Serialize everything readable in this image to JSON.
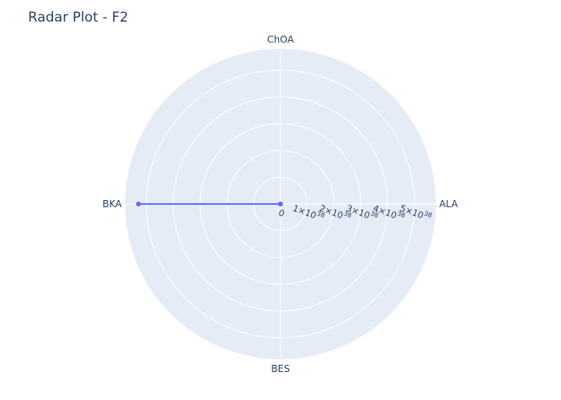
{
  "chart_data": {
    "type": "radar",
    "title": "Radar Plot - F2",
    "axes": [
      "ALA",
      "ChOA",
      "BKA",
      "BES"
    ],
    "series": [
      {
        "values": [
          0,
          0,
          5.3e+38,
          0
        ],
        "color": "#636efa"
      }
    ],
    "radial_range": [
      0,
      5.8e+38
    ],
    "radial_ticks": [
      {
        "value": 0,
        "mantissa": "0",
        "exponent": ""
      },
      {
        "value": 1e+38,
        "mantissa": "1×10",
        "exponent": "38"
      },
      {
        "value": 2e+38,
        "mantissa": "2×10",
        "exponent": "38"
      },
      {
        "value": 3e+38,
        "mantissa": "3×10",
        "exponent": "38"
      },
      {
        "value": 4e+38,
        "mantissa": "4×10",
        "exponent": "38"
      },
      {
        "value": 5e+38,
        "mantissa": "5×10",
        "exponent": "38"
      }
    ],
    "grid": true,
    "colors": {
      "background": "#e5ecf6",
      "grid": "#ffffff",
      "text": "#2a3f5f"
    }
  }
}
